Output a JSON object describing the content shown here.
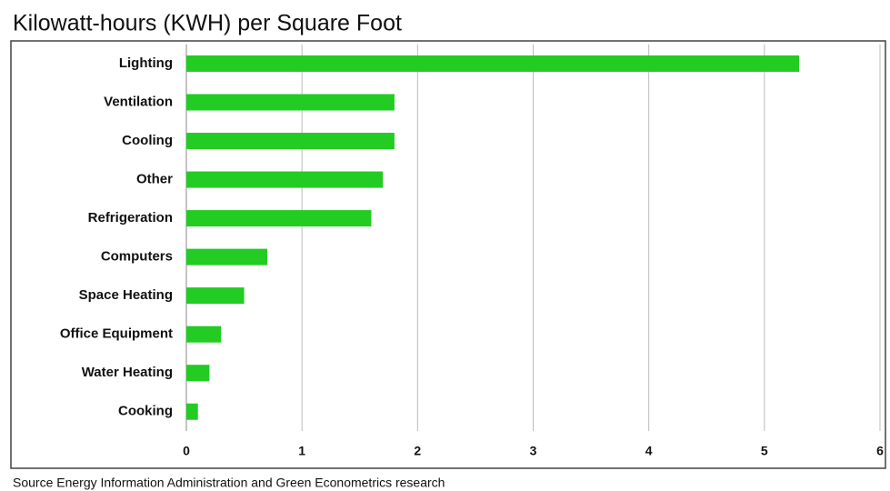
{
  "chart_data": {
    "type": "bar",
    "orientation": "horizontal",
    "title": "Kilowatt-hours (KWH) per Square Foot",
    "source": "Source  Energy Information Administration and Green Econometrics research",
    "categories": [
      "Lighting",
      "Ventilation",
      "Cooling",
      "Other",
      "Refrigeration",
      "Computers",
      "Space Heating",
      "Office Equipment",
      "Water Heating",
      "Cooking"
    ],
    "values": [
      5.3,
      1.8,
      1.8,
      1.7,
      1.6,
      0.7,
      0.5,
      0.3,
      0.2,
      0.1
    ],
    "color": "#22cc22",
    "xlim": [
      0,
      6
    ],
    "xticks": [
      0,
      1,
      2,
      3,
      4,
      5,
      6
    ],
    "grid": true
  }
}
